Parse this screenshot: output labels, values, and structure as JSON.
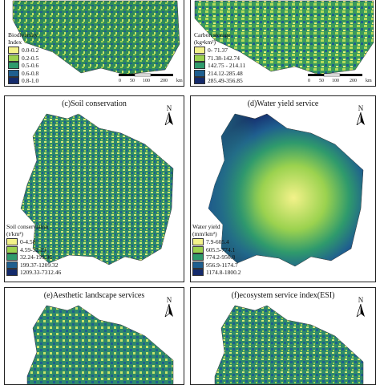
{
  "panels": [
    {
      "id": "a",
      "title": "",
      "legend_title": "Biodiversity\nIndex",
      "legend": [
        {
          "label": "0.0-0.2",
          "color": "#f3f28a"
        },
        {
          "label": "0.2-0.5",
          "color": "#9bd24f"
        },
        {
          "label": "0.5-0.6",
          "color": "#2f9a6c"
        },
        {
          "label": "0.6-0.8",
          "color": "#1f5f8f"
        },
        {
          "label": "0.8-1.0",
          "color": "#142a6b"
        }
      ],
      "scale": {
        "ticks": [
          "0",
          "50",
          "100",
          "200"
        ],
        "unit": "km"
      }
    },
    {
      "id": "b",
      "title": "",
      "legend_title": "Carbon storage\n(kg•km²)",
      "legend": [
        {
          "label": "0- 71.37",
          "color": "#f3f28a"
        },
        {
          "label": "71.38-142.74",
          "color": "#9bd24f"
        },
        {
          "label": "142.75 - 214.11",
          "color": "#2f9a6c"
        },
        {
          "label": "214.12-285.48",
          "color": "#1f5f8f"
        },
        {
          "label": "285.49-356.85",
          "color": "#142a6b"
        }
      ],
      "scale": {
        "ticks": [
          "0",
          "50",
          "100",
          "200"
        ],
        "unit": "km"
      }
    },
    {
      "id": "c",
      "title": "(c)Soil conservation",
      "legend_title": "Soil conservation\n(t/km²)",
      "legend": [
        {
          "label": "0-4.58",
          "color": "#f3f28a"
        },
        {
          "label": "4.59-32.23",
          "color": "#9bd24f"
        },
        {
          "label": "32.24-199.36",
          "color": "#2f9a6c"
        },
        {
          "label": "199.37-1209.32",
          "color": "#1f5f8f"
        },
        {
          "label": "1209.33-7312.46",
          "color": "#142a6b"
        }
      ],
      "north": "N"
    },
    {
      "id": "d",
      "title": "(d)Water yield service",
      "legend_title": "Water yield\n(mm/km²)",
      "legend": [
        {
          "label": "7.9-605.4",
          "color": "#f3f28a"
        },
        {
          "label": "605.5-774.1",
          "color": "#9bd24f"
        },
        {
          "label": "774.2-956.8",
          "color": "#2f9a6c"
        },
        {
          "label": "956.9-1174.7",
          "color": "#1f5f8f"
        },
        {
          "label": "1174.8-1800.2",
          "color": "#142a6b"
        }
      ],
      "north": "N"
    },
    {
      "id": "e",
      "title": "(e)Aesthetic landscape services",
      "north": "N"
    },
    {
      "id": "f",
      "title": "(f)ecosystem service index(ESI)",
      "north": "N"
    }
  ]
}
